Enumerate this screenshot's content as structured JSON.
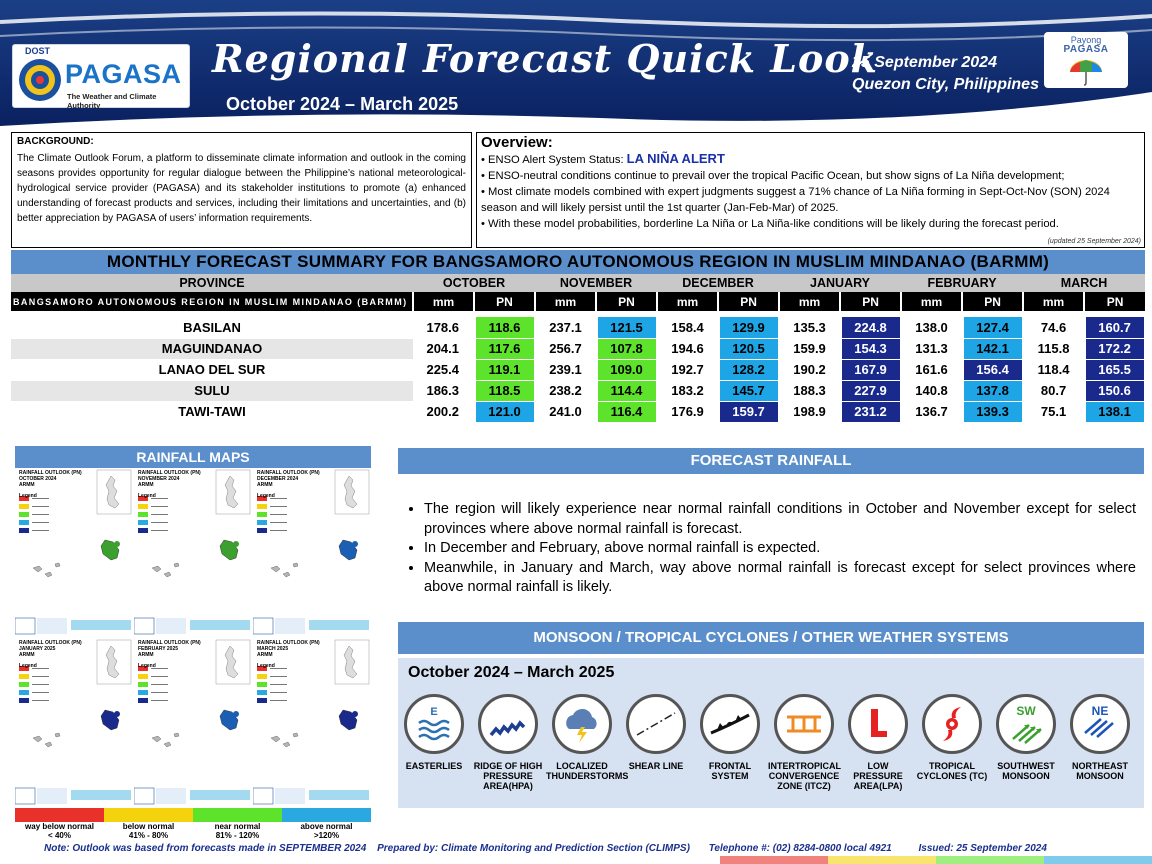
{
  "header": {
    "dost": "DOST",
    "agency": "PAGASA",
    "tagline": "The Weather and Climate Authority",
    "title": "Regional Forecast Quick Look",
    "period": "October 2024 – March 2025",
    "date": "25 September 2024",
    "place": "Quezon City, Philippines",
    "payong_line1": "Payong",
    "payong_line2": "PAGASA"
  },
  "background": {
    "title": "BACKGROUND:",
    "text": "The Climate Outlook Forum, a platform to disseminate climate information and outlook in the coming seasons provides opportunity for regular dialogue between the Philippine’s national meteorological-hydrological service provider (PAGASA) and its stakeholder institutions to promote (a) enhanced understanding of forecast products and services, including their limitations and uncertainties, and (b) better appreciation by PAGASA of users’ information requirements."
  },
  "overview": {
    "title": "Overview:",
    "alert_prefix": "• ENSO Alert System Status: ",
    "alert_status": "LA NIÑA ALERT",
    "line2": "• ENSO-neutral conditions continue to prevail over the tropical Pacific Ocean, but show signs of La Niña development;",
    "line3": "• Most climate models combined with expert judgments suggest a 71% chance of La Niña forming in Sept-Oct-Nov (SON) 2024 season and will likely persist until the 1st quarter (Jan-Feb-Mar) of 2025.",
    "line4": "• With these model probabilities, borderline La Niña or La Niña-like conditions will be likely during the forecast period.",
    "updated": "(updated 25 September 2024)"
  },
  "summary": {
    "banner": "MONTHLY FORECAST SUMMARY FOR BANGSAMORO AUTONOMOUS REGION IN MUSLIM MINDANAO (BARMM)",
    "province_header": "PROVINCE",
    "region_label": "BANGSAMORO AUTONOMOUS REGION IN MUSLIM MINDANAO (BARMM)",
    "mm_label": "mm",
    "pn_label": "PN",
    "months": [
      "OCTOBER",
      "NOVEMBER",
      "DECEMBER",
      "JANUARY",
      "FEBRUARY",
      "MARCH"
    ],
    "rows": [
      {
        "province": "BASILAN",
        "values": [
          [
            "178.6",
            "118.6",
            "green"
          ],
          [
            "237.1",
            "121.5",
            "blue"
          ],
          [
            "158.4",
            "129.9",
            "blue"
          ],
          [
            "135.3",
            "224.8",
            "navy"
          ],
          [
            "138.0",
            "127.4",
            "blue"
          ],
          [
            "74.6",
            "160.7",
            "navy"
          ]
        ]
      },
      {
        "province": "MAGUINDANAO",
        "values": [
          [
            "204.1",
            "117.6",
            "green"
          ],
          [
            "256.7",
            "107.8",
            "green"
          ],
          [
            "194.6",
            "120.5",
            "blue"
          ],
          [
            "159.9",
            "154.3",
            "navy"
          ],
          [
            "131.3",
            "142.1",
            "blue"
          ],
          [
            "115.8",
            "172.2",
            "navy"
          ]
        ]
      },
      {
        "province": "LANAO DEL SUR",
        "values": [
          [
            "225.4",
            "119.1",
            "green"
          ],
          [
            "239.1",
            "109.0",
            "green"
          ],
          [
            "192.7",
            "128.2",
            "blue"
          ],
          [
            "190.2",
            "167.9",
            "navy"
          ],
          [
            "161.6",
            "156.4",
            "navy"
          ],
          [
            "118.4",
            "165.5",
            "navy"
          ]
        ]
      },
      {
        "province": "SULU",
        "values": [
          [
            "186.3",
            "118.5",
            "green"
          ],
          [
            "238.2",
            "114.4",
            "green"
          ],
          [
            "183.2",
            "145.7",
            "blue"
          ],
          [
            "188.3",
            "227.9",
            "navy"
          ],
          [
            "140.8",
            "137.8",
            "blue"
          ],
          [
            "80.7",
            "150.6",
            "navy"
          ]
        ]
      },
      {
        "province": "TAWI-TAWI",
        "values": [
          [
            "200.2",
            "121.0",
            "blue"
          ],
          [
            "241.0",
            "116.4",
            "green"
          ],
          [
            "176.9",
            "159.7",
            "navy"
          ],
          [
            "198.9",
            "231.2",
            "navy"
          ],
          [
            "136.7",
            "139.3",
            "blue"
          ],
          [
            "75.1",
            "138.1",
            "blue"
          ]
        ]
      }
    ]
  },
  "rainfall_maps": {
    "banner": "RAINFALL MAPS",
    "maps": [
      {
        "title": "RAINFALL OUTLOOK (PN)",
        "month": "OCTOBER 2024",
        "region": "ARMM",
        "legend": "Legend"
      },
      {
        "title": "RAINFALL OUTLOOK (PN)",
        "month": "NOVEMBER 2024",
        "region": "ARMM",
        "legend": "Legend"
      },
      {
        "title": "RAINFALL OUTLOOK (PN)",
        "month": "DECEMBER 2024",
        "region": "ARMM",
        "legend": "Legend"
      },
      {
        "title": "RAINFALL OUTLOOK (PN)",
        "month": "JANUARY 2025",
        "region": "ARMM",
        "legend": "Legend"
      },
      {
        "title": "RAINFALL OUTLOOK (PN)",
        "month": "FEBRUARY 2025",
        "region": "ARMM",
        "legend": "Legend"
      },
      {
        "title": "RAINFALL OUTLOOK (PN)",
        "month": "MARCH 2025",
        "region": "ARMM",
        "legend": "Legend"
      }
    ],
    "legend": [
      {
        "label": "way below normal",
        "range": "< 40%",
        "color": "#e8312a"
      },
      {
        "label": "below normal",
        "range": "41%  -  80%",
        "color": "#f5d20e"
      },
      {
        "label": "near normal",
        "range": "81% - 120%",
        "color": "#5ee32c"
      },
      {
        "label": "above normal",
        "range": ">120%",
        "color": "#2aa8e0"
      }
    ]
  },
  "forecast_rainfall": {
    "banner": "FORECAST RAINFALL",
    "bullets": [
      "The region will likely experience near normal rainfall conditions in October and November except for select provinces where above normal rainfall is forecast.",
      "In December and February, above normal rainfall is expected.",
      "Meanwhile, in January and March, way above normal rainfall is forecast except for select provinces where above normal rainfall is likely."
    ]
  },
  "systems": {
    "banner": "MONSOON / TROPICAL CYCLONES / OTHER WEATHER SYSTEMS",
    "period": "October 2024 – March 2025",
    "items": [
      {
        "label": "EASTERLIES",
        "icon": "easterlies-icon"
      },
      {
        "label": "RIDGE OF HIGH PRESSURE AREA(HPA)",
        "icon": "ridge-icon"
      },
      {
        "label": "LOCALIZED THUNDERSTORMS",
        "icon": "thunderstorm-icon"
      },
      {
        "label": "SHEAR LINE",
        "icon": "shear-line-icon"
      },
      {
        "label": "FRONTAL SYSTEM",
        "icon": "frontal-system-icon"
      },
      {
        "label": "INTERTROPICAL CONVERGENCE ZONE (ITCZ)",
        "icon": "itcz-icon"
      },
      {
        "label": "LOW PRESSURE AREA(LPA)",
        "icon": "lpa-icon"
      },
      {
        "label": "TROPICAL CYCLONES (TC)",
        "icon": "tropical-cyclone-icon"
      },
      {
        "label": "SOUTHWEST MONSOON",
        "icon": "southwest-monsoon-icon"
      },
      {
        "label": "NORTHEAST MONSOON",
        "icon": "northeast-monsoon-icon"
      }
    ]
  },
  "footer": {
    "note": "Note: Outlook was based from forecasts made in SEPTEMBER 2024",
    "prepared": "Prepared by: Climate Monitoring and Prediction Section (CLIMPS)",
    "telephone": "Telephone #: (02) 8284-0800 local 4921",
    "issued": "Issued: 25 September 2024"
  },
  "colors": {
    "header": "#0c2a6b",
    "banner": "#5b8fcb",
    "green": "#5ee32c",
    "blue": "#1ea5e6",
    "navy": "#1a2a8c"
  }
}
